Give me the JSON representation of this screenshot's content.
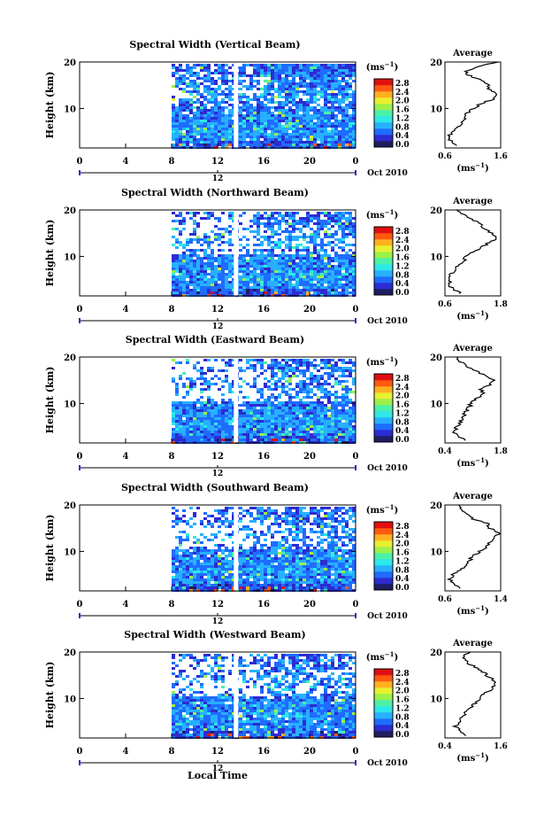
{
  "figure": {
    "xlabel": "Local Time",
    "date_label": "Oct 2010",
    "colorbar_unit": "(ms",
    "colorbar_unit_exp": "−1",
    "colorbar_ticks": [
      "2.8",
      "2.4",
      "2.0",
      "1.6",
      "1.2",
      "0.8",
      "0.4",
      "0.0"
    ],
    "colors": [
      "#1e1e60",
      "#2c2cd0",
      "#1f6cff",
      "#27b0ff",
      "#2ee8e8",
      "#4cf0a8",
      "#9cf04a",
      "#e8f030",
      "#ffb020",
      "#ff5a10",
      "#e01010"
    ]
  },
  "chart_data": [
    {
      "type": "heatmap",
      "title": "Spectral Width (Vertical Beam)",
      "ylabel": "Height (km)",
      "xlabel": "Local Time",
      "x_ticks": [
        "0",
        "4",
        "8",
        "12",
        "16",
        "20",
        "0"
      ],
      "x_range": [
        0,
        24
      ],
      "day_marker": "12",
      "y_ticks": [
        "20",
        "10"
      ],
      "ylim": [
        1.5,
        20
      ],
      "colorbar_range": [
        0.0,
        3.0
      ],
      "data_window_local_time": [
        8,
        24
      ],
      "gap_local_time": 13.6,
      "average_profile": {
        "title": "Average",
        "xlabel": "(ms",
        "xlabel_exp": "−1",
        "x_ticks": [
          "0.6",
          "1.6"
        ],
        "xlim": [
          0.6,
          1.6
        ],
        "y_ticks": [
          "20",
          "10"
        ],
        "height_km": [
          2,
          3,
          4,
          5,
          6,
          7,
          8,
          9,
          10,
          11,
          12,
          13,
          14,
          15,
          16,
          17,
          18,
          19,
          20
        ],
        "value_ms": [
          0.85,
          0.7,
          0.66,
          0.72,
          0.82,
          0.9,
          0.95,
          1.0,
          1.1,
          1.25,
          1.45,
          1.55,
          1.4,
          1.38,
          1.3,
          1.05,
          0.95,
          1.2,
          1.55
        ]
      }
    },
    {
      "type": "heatmap",
      "title": "Spectral Width (Northward Beam)",
      "ylabel": "Height (km)",
      "xlabel": "Local Time",
      "x_ticks": [
        "0",
        "4",
        "8",
        "12",
        "16",
        "20",
        "0"
      ],
      "x_range": [
        0,
        24
      ],
      "day_marker": "12",
      "y_ticks": [
        "20",
        "10"
      ],
      "ylim": [
        1.5,
        20
      ],
      "colorbar_range": [
        0.0,
        3.0
      ],
      "data_window_local_time": [
        8,
        24
      ],
      "gap_local_time": 13.6,
      "average_profile": {
        "title": "Average",
        "xlabel": "(ms",
        "xlabel_exp": "−1",
        "x_ticks": [
          "0.6",
          "1.8"
        ],
        "xlim": [
          0.6,
          1.8
        ],
        "y_ticks": [
          "20",
          "10"
        ],
        "height_km": [
          2,
          3,
          4,
          5,
          6,
          7,
          8,
          9,
          10,
          11,
          12,
          13,
          14,
          15,
          16,
          17,
          18,
          19,
          20
        ],
        "value_ms": [
          0.95,
          0.75,
          0.68,
          0.7,
          0.72,
          0.8,
          0.9,
          1.0,
          1.05,
          1.2,
          1.4,
          1.55,
          1.7,
          1.6,
          1.45,
          1.35,
          1.2,
          1.0,
          0.85
        ]
      }
    },
    {
      "type": "heatmap",
      "title": "Spectral Width (Eastward Beam)",
      "ylabel": "Height (km)",
      "xlabel": "Local Time",
      "x_ticks": [
        "0",
        "4",
        "8",
        "12",
        "16",
        "20",
        "0"
      ],
      "x_range": [
        0,
        24
      ],
      "day_marker": "12",
      "y_ticks": [
        "20",
        "10"
      ],
      "ylim": [
        1.5,
        20
      ],
      "colorbar_range": [
        0.0,
        3.0
      ],
      "data_window_local_time": [
        8,
        24
      ],
      "gap_local_time": 13.6,
      "average_profile": {
        "title": "Average",
        "xlabel": "(ms",
        "xlabel_exp": "−1",
        "x_ticks": [
          "0.4",
          "1.8"
        ],
        "xlim": [
          0.4,
          1.8
        ],
        "y_ticks": [
          "20",
          "10"
        ],
        "height_km": [
          2,
          3,
          4,
          5,
          6,
          7,
          8,
          9,
          10,
          11,
          12,
          13,
          14,
          15,
          16,
          17,
          18,
          19,
          20
        ],
        "value_ms": [
          0.95,
          0.7,
          0.62,
          0.7,
          0.78,
          0.85,
          0.9,
          1.0,
          1.05,
          1.2,
          1.35,
          1.3,
          1.5,
          1.6,
          1.4,
          1.2,
          0.95,
          0.8,
          0.7
        ]
      }
    },
    {
      "type": "heatmap",
      "title": "Spectral Width (Southward Beam)",
      "ylabel": "Height (km)",
      "xlabel": "Local Time",
      "x_ticks": [
        "0",
        "4",
        "8",
        "12",
        "16",
        "20",
        "0"
      ],
      "x_range": [
        0,
        24
      ],
      "day_marker": "12",
      "y_ticks": [
        "20",
        "10"
      ],
      "ylim": [
        1.5,
        20
      ],
      "colorbar_range": [
        0.0,
        3.0
      ],
      "data_window_local_time": [
        8,
        24
      ],
      "gap_local_time": 13.6,
      "average_profile": {
        "title": "Average",
        "xlabel": "(ms",
        "xlabel_exp": "−1",
        "x_ticks": [
          "0.6",
          "1.4"
        ],
        "xlim": [
          0.6,
          1.4
        ],
        "y_ticks": [
          "20",
          "10"
        ],
        "height_km": [
          2,
          3,
          4,
          5,
          6,
          7,
          8,
          9,
          10,
          11,
          12,
          13,
          14,
          15,
          16,
          17,
          18,
          19,
          20
        ],
        "value_ms": [
          0.85,
          0.72,
          0.66,
          0.72,
          0.82,
          0.9,
          0.95,
          1.0,
          1.1,
          1.2,
          1.25,
          1.3,
          1.38,
          1.25,
          1.2,
          1.0,
          0.95,
          0.85,
          0.8
        ]
      }
    },
    {
      "type": "heatmap",
      "title": "Spectral Width (Westward Beam)",
      "ylabel": "Height (km)",
      "xlabel": "Local Time",
      "x_ticks": [
        "0",
        "4",
        "8",
        "12",
        "16",
        "20",
        "0"
      ],
      "x_range": [
        0,
        24
      ],
      "day_marker": "12",
      "y_ticks": [
        "20",
        "10"
      ],
      "ylim": [
        1.5,
        20
      ],
      "colorbar_range": [
        0.0,
        3.0
      ],
      "data_window_local_time": [
        8,
        24
      ],
      "gap_local_time": 13.6,
      "average_profile": {
        "title": "Average",
        "xlabel": "(ms",
        "xlabel_exp": "−1",
        "x_ticks": [
          "0.4",
          "1.6"
        ],
        "xlim": [
          0.4,
          1.6
        ],
        "y_ticks": [
          "20",
          "10"
        ],
        "height_km": [
          2,
          3,
          4,
          5,
          6,
          7,
          8,
          9,
          10,
          11,
          12,
          13,
          14,
          15,
          16,
          17,
          18,
          19,
          20
        ],
        "value_ms": [
          0.9,
          0.72,
          0.62,
          0.7,
          0.78,
          0.85,
          0.95,
          1.05,
          1.15,
          1.25,
          1.4,
          1.5,
          1.45,
          1.3,
          1.2,
          1.0,
          0.85,
          0.8,
          0.95
        ]
      }
    }
  ]
}
